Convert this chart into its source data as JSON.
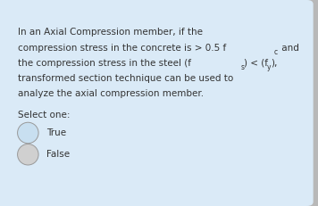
{
  "background_color": "#d6e9f8",
  "outer_bg": "#b8b8b8",
  "card_bg": "#daeaf7",
  "text_color": "#333333",
  "fontsize": 7.5,
  "sub_fontsize": 5.5,
  "line1": "In an Axial Compression member, if the",
  "line2_main": "compression stress in the concrete is > 0.5 f",
  "line2_sub": "c",
  "line2_end": " and",
  "line3_main": "the compression stress in the steel (f",
  "line3_sub1": "s",
  "line3_mid": ") < (f",
  "line3_sub2": "y",
  "line3_end": "),",
  "line4": "transformed section technique can be used to",
  "line5": "analyze the axial compression member.",
  "select": "Select one:",
  "opt1": "True",
  "opt2": "False",
  "radio_color1": "#c8dff0",
  "radio_color2": "#d0d0d0",
  "radio_edge": "#999999"
}
